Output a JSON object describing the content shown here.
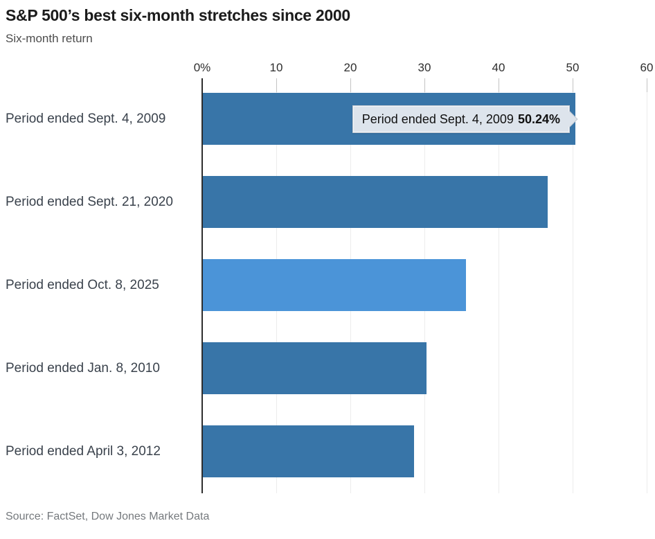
{
  "chart_data": {
    "type": "bar",
    "orientation": "horizontal",
    "title": "S&P 500’s best six-month stretches since 2000",
    "subtitle": "Six-month return",
    "source": "Source: FactSet, Dow Jones Market Data",
    "categories": [
      "Period ended Sept. 4, 2009",
      "Period ended Sept. 21, 2020",
      "Period ended Oct. 8, 2025",
      "Period ended Jan. 8, 2010",
      "Period ended April 3, 2012"
    ],
    "values": [
      50.24,
      46.5,
      35.5,
      30.2,
      28.5
    ],
    "xlim": [
      0,
      60
    ],
    "xticks": [
      0,
      10,
      20,
      30,
      40,
      50,
      60
    ],
    "xtick_labels": [
      "0%",
      "10",
      "20",
      "30",
      "40",
      "50",
      "60"
    ],
    "grid": true,
    "legend": false,
    "highlight_index": 2,
    "colors": {
      "bar": "#3875a8",
      "bar_highlight": "#4b94d8"
    },
    "tooltip": {
      "target_index": 0,
      "label": "Period ended Sept. 4, 2009",
      "value": "50.24%"
    }
  }
}
